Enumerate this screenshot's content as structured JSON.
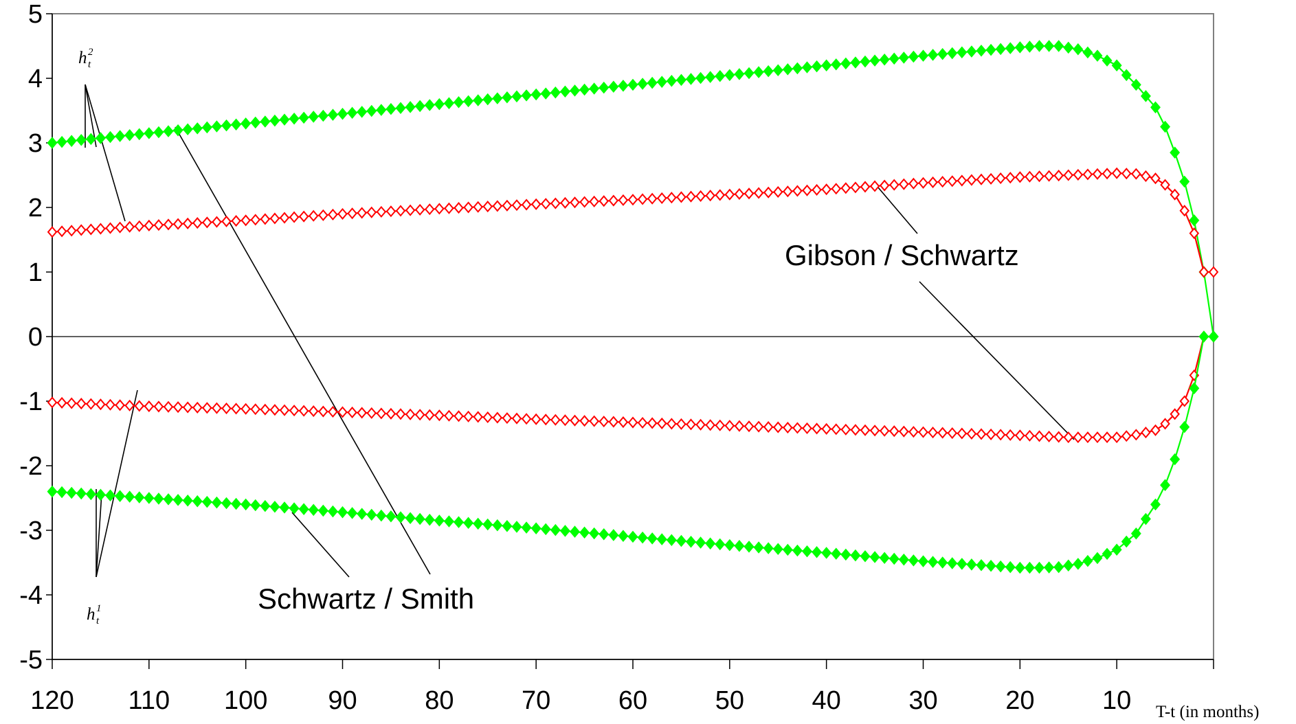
{
  "chart_data": {
    "type": "line",
    "xlabel": "T-t  (in months)",
    "ylabel": "",
    "x_reversed": true,
    "xlim": [
      120,
      0
    ],
    "ylim": [
      -5,
      5
    ],
    "x_ticks": [
      120,
      110,
      100,
      90,
      80,
      70,
      60,
      50,
      40,
      30,
      20,
      10
    ],
    "y_ticks": [
      -5,
      -4,
      -3,
      -2,
      -1,
      0,
      1,
      2,
      3,
      4,
      5
    ],
    "grid": false,
    "colors": {
      "schwartz_smith": "#00ff00",
      "gibson_schwartz": "#ff0000"
    },
    "annotations": {
      "h2_base": "h",
      "h2_sup": "2",
      "h2_sub": "t",
      "h1_base": "h",
      "h1_sup": "1",
      "h1_sub": "t",
      "gibson_schwartz": "Gibson / Schwartz",
      "schwartz_smith": "Schwartz / Smith"
    },
    "series": [
      {
        "id": "ss_h2",
        "color": "#00ff00",
        "marker": "filled-diamond",
        "x": [
          120,
          110,
          100,
          90,
          80,
          70,
          60,
          50,
          40,
          30,
          20,
          18,
          16,
          14,
          12,
          10,
          8,
          6,
          5,
          4,
          3,
          2,
          1,
          0
        ],
        "y": [
          3.0,
          3.15,
          3.3,
          3.45,
          3.6,
          3.75,
          3.9,
          4.05,
          4.2,
          4.35,
          4.48,
          4.5,
          4.5,
          4.45,
          4.35,
          4.2,
          3.9,
          3.55,
          3.25,
          2.85,
          2.4,
          1.8,
          1.0,
          0.0
        ]
      },
      {
        "id": "gs_h2",
        "color": "#ff0000",
        "marker": "hollow-diamond",
        "x": [
          120,
          110,
          100,
          90,
          80,
          70,
          60,
          50,
          40,
          30,
          20,
          15,
          10,
          8,
          6,
          5,
          4,
          3,
          2,
          1,
          0
        ],
        "y": [
          1.62,
          1.72,
          1.8,
          1.9,
          1.98,
          2.05,
          2.12,
          2.2,
          2.28,
          2.38,
          2.47,
          2.5,
          2.53,
          2.52,
          2.45,
          2.35,
          2.2,
          1.95,
          1.6,
          1.0,
          1.0
        ]
      },
      {
        "id": "gs_h1",
        "color": "#ff0000",
        "marker": "hollow-diamond",
        "x": [
          120,
          110,
          100,
          90,
          80,
          70,
          60,
          50,
          40,
          30,
          20,
          15,
          10,
          8,
          6,
          5,
          4,
          3,
          2,
          1,
          0
        ],
        "y": [
          -1.02,
          -1.08,
          -1.12,
          -1.17,
          -1.22,
          -1.28,
          -1.33,
          -1.38,
          -1.43,
          -1.48,
          -1.53,
          -1.56,
          -1.56,
          -1.52,
          -1.45,
          -1.35,
          -1.2,
          -1.0,
          -0.6,
          0.0,
          0.0
        ]
      },
      {
        "id": "ss_h1",
        "color": "#00ff00",
        "marker": "filled-diamond",
        "x": [
          120,
          110,
          100,
          90,
          80,
          70,
          60,
          50,
          40,
          30,
          20,
          18,
          16,
          14,
          12,
          10,
          8,
          6,
          5,
          4,
          3,
          2,
          1,
          0
        ],
        "y": [
          -2.4,
          -2.5,
          -2.6,
          -2.72,
          -2.85,
          -2.97,
          -3.1,
          -3.23,
          -3.35,
          -3.48,
          -3.58,
          -3.58,
          -3.57,
          -3.52,
          -3.43,
          -3.3,
          -3.05,
          -2.6,
          -2.3,
          -1.9,
          -1.4,
          -0.8,
          0.0,
          0.0
        ]
      }
    ]
  }
}
